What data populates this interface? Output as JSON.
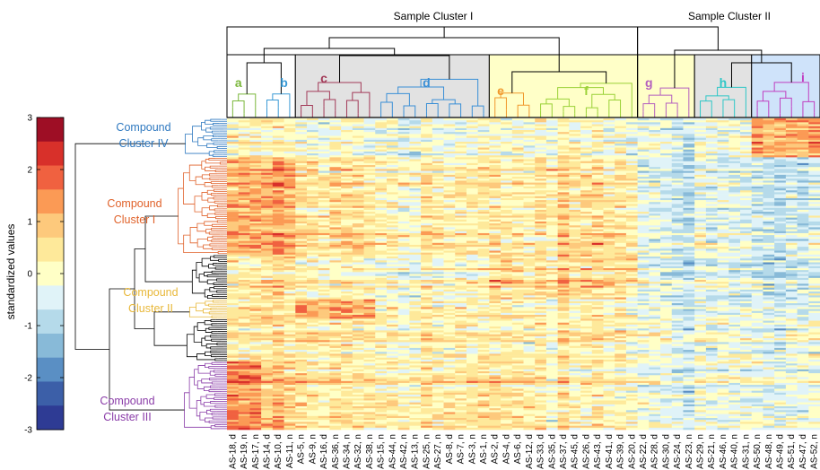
{
  "chart_data": {
    "type": "heatmap",
    "colorbar": {
      "label": "standardized values",
      "ticks": [
        3,
        2,
        1,
        0,
        -1,
        -2,
        -3
      ],
      "range": [
        -3,
        3
      ],
      "colors": [
        "#9e0e25",
        "#d8302a",
        "#f06140",
        "#fb9a55",
        "#fdc97c",
        "#fee99a",
        "#ffffc6",
        "#e0f3f8",
        "#b5daea",
        "#88bad8",
        "#5a8fc4",
        "#3c5fa8",
        "#2e3b94"
      ]
    },
    "sample_clusters": [
      {
        "name": "Sample Cluster I"
      },
      {
        "name": "Sample Cluster II"
      }
    ],
    "sample_subclusters": [
      {
        "letter": "a",
        "color": "#7bb73c",
        "bg": "#ffffff"
      },
      {
        "letter": "b",
        "color": "#3a9ad6",
        "bg": "#ffffff"
      },
      {
        "letter": "c",
        "color": "#a23a58",
        "bg": "#e2e2e2"
      },
      {
        "letter": "d",
        "color": "#3a8fd6",
        "bg": "#e2e2e2"
      },
      {
        "letter": "e",
        "color": "#f0982c",
        "bg": "#ffffc8"
      },
      {
        "letter": "f",
        "color": "#9ad136",
        "bg": "#ffffc8"
      },
      {
        "letter": "g",
        "color": "#b45fbf",
        "bg": "#ffffc8"
      },
      {
        "letter": "h",
        "color": "#2fc7c7",
        "bg": "#e2e2e2"
      },
      {
        "letter": "i",
        "color": "#c03fc0",
        "bg": "#cfe3fa"
      }
    ],
    "compound_clusters": [
      {
        "line1": "Compound",
        "line2": "Cluster IV",
        "color": "#2f79c0"
      },
      {
        "line1": "Compound",
        "line2": "Cluster I",
        "color": "#e0622a"
      },
      {
        "line1": "Compound",
        "line2": "Cluster II",
        "color": "#e8b83a"
      },
      {
        "line1": "Compound",
        "line2": "Cluster III",
        "color": "#8a3ca8"
      }
    ],
    "samples": [
      "AS-18, d",
      "AS-19, n",
      "AS-17, n",
      "AS-14, d",
      "AS-10, d",
      "AS-11, n",
      "AS-5, n",
      "AS-9, n",
      "AS-16, d",
      "AS-36, n",
      "AS-34, n",
      "AS-32, n",
      "AS-38, n",
      "AS-15, n",
      "AS-44, n",
      "AS-42, n",
      "AS-13, n",
      "AS-25, n",
      "AS-27, n",
      "AS-8, d",
      "AS-7, n",
      "AS-3, n",
      "AS-1, n",
      "AS-2, d",
      "AS-4, d",
      "AS-6, d",
      "AS-12, d",
      "AS-33, d",
      "AS-35, d",
      "AS-37, d",
      "AS-45, d",
      "AS-26, d",
      "AS-43, d",
      "AS-41, d",
      "AS-39, d",
      "AS-20, d",
      "AS-22, d",
      "AS-28, d",
      "AS-30, d",
      "AS-24, d",
      "AS-23, n",
      "AS-29, n",
      "AS-21, n",
      "AS-46, n",
      "AS-40, n",
      "AS-31, n",
      "AS-50, n",
      "AS-48, n",
      "AS-49, d",
      "AS-51, d",
      "AS-47, d",
      "AS-52, n"
    ]
  }
}
